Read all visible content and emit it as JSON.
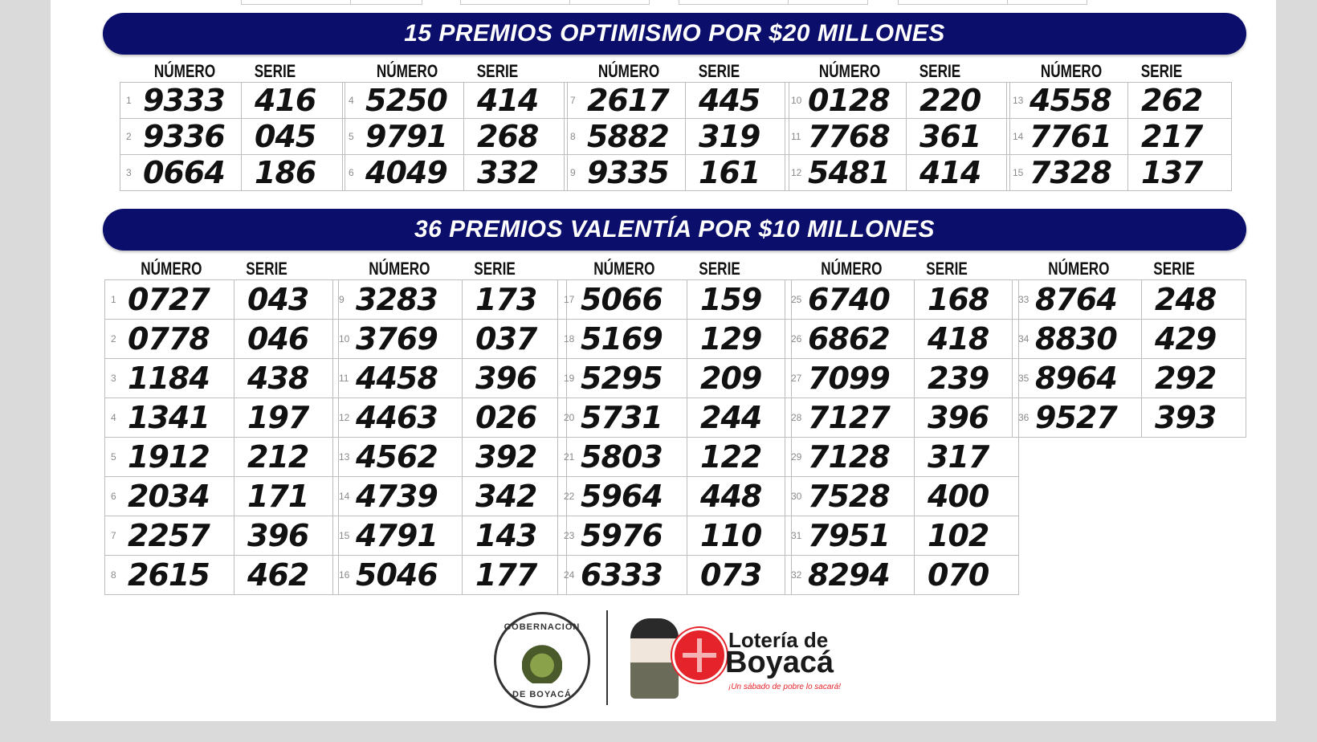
{
  "colors": {
    "banner_bg": "#0b0e6b",
    "banner_text": "#ffffff",
    "page_bg": "#dadada",
    "sheet_bg": "#ffffff",
    "brand_red": "#e5232a"
  },
  "optimismo": {
    "title": "15 PREMIOS OPTIMISMO POR $20 MILLONES",
    "header_numero": "NÚMERO",
    "header_serie": "SERIE",
    "groups": [
      {
        "rows": [
          {
            "idx": "1",
            "numero": "9333",
            "serie": "416"
          },
          {
            "idx": "2",
            "numero": "9336",
            "serie": "045"
          },
          {
            "idx": "3",
            "numero": "0664",
            "serie": "186"
          }
        ]
      },
      {
        "rows": [
          {
            "idx": "4",
            "numero": "5250",
            "serie": "414"
          },
          {
            "idx": "5",
            "numero": "9791",
            "serie": "268"
          },
          {
            "idx": "6",
            "numero": "4049",
            "serie": "332"
          }
        ]
      },
      {
        "rows": [
          {
            "idx": "7",
            "numero": "2617",
            "serie": "445"
          },
          {
            "idx": "8",
            "numero": "5882",
            "serie": "319"
          },
          {
            "idx": "9",
            "numero": "9335",
            "serie": "161"
          }
        ]
      },
      {
        "rows": [
          {
            "idx": "10",
            "numero": "0128",
            "serie": "220"
          },
          {
            "idx": "11",
            "numero": "7768",
            "serie": "361"
          },
          {
            "idx": "12",
            "numero": "5481",
            "serie": "414"
          }
        ]
      },
      {
        "rows": [
          {
            "idx": "13",
            "numero": "4558",
            "serie": "262"
          },
          {
            "idx": "14",
            "numero": "7761",
            "serie": "217"
          },
          {
            "idx": "15",
            "numero": "7328",
            "serie": "137"
          }
        ]
      }
    ]
  },
  "valentia": {
    "title": "36 PREMIOS VALENTÍA POR $10 MILLONES",
    "header_numero": "NÚMERO",
    "header_serie": "SERIE",
    "groups": [
      {
        "rows": [
          {
            "idx": "1",
            "numero": "0727",
            "serie": "043"
          },
          {
            "idx": "2",
            "numero": "0778",
            "serie": "046"
          },
          {
            "idx": "3",
            "numero": "1184",
            "serie": "438"
          },
          {
            "idx": "4",
            "numero": "1341",
            "serie": "197"
          },
          {
            "idx": "5",
            "numero": "1912",
            "serie": "212"
          },
          {
            "idx": "6",
            "numero": "2034",
            "serie": "171"
          },
          {
            "idx": "7",
            "numero": "2257",
            "serie": "396"
          },
          {
            "idx": "8",
            "numero": "2615",
            "serie": "462"
          }
        ]
      },
      {
        "rows": [
          {
            "idx": "9",
            "numero": "3283",
            "serie": "173"
          },
          {
            "idx": "10",
            "numero": "3769",
            "serie": "037"
          },
          {
            "idx": "11",
            "numero": "4458",
            "serie": "396"
          },
          {
            "idx": "12",
            "numero": "4463",
            "serie": "026"
          },
          {
            "idx": "13",
            "numero": "4562",
            "serie": "392"
          },
          {
            "idx": "14",
            "numero": "4739",
            "serie": "342"
          },
          {
            "idx": "15",
            "numero": "4791",
            "serie": "143"
          },
          {
            "idx": "16",
            "numero": "5046",
            "serie": "177"
          }
        ]
      },
      {
        "rows": [
          {
            "idx": "17",
            "numero": "5066",
            "serie": "159"
          },
          {
            "idx": "18",
            "numero": "5169",
            "serie": "129"
          },
          {
            "idx": "19",
            "numero": "5295",
            "serie": "209"
          },
          {
            "idx": "20",
            "numero": "5731",
            "serie": "244"
          },
          {
            "idx": "21",
            "numero": "5803",
            "serie": "122"
          },
          {
            "idx": "22",
            "numero": "5964",
            "serie": "448"
          },
          {
            "idx": "23",
            "numero": "5976",
            "serie": "110"
          },
          {
            "idx": "24",
            "numero": "6333",
            "serie": "073"
          }
        ]
      },
      {
        "rows": [
          {
            "idx": "25",
            "numero": "6740",
            "serie": "168"
          },
          {
            "idx": "26",
            "numero": "6862",
            "serie": "418"
          },
          {
            "idx": "27",
            "numero": "7099",
            "serie": "239"
          },
          {
            "idx": "28",
            "numero": "7127",
            "serie": "396"
          },
          {
            "idx": "29",
            "numero": "7128",
            "serie": "317"
          },
          {
            "idx": "30",
            "numero": "7528",
            "serie": "400"
          },
          {
            "idx": "31",
            "numero": "7951",
            "serie": "102"
          },
          {
            "idx": "32",
            "numero": "8294",
            "serie": "070"
          }
        ]
      },
      {
        "rows": [
          {
            "idx": "33",
            "numero": "8764",
            "serie": "248"
          },
          {
            "idx": "34",
            "numero": "8830",
            "serie": "429"
          },
          {
            "idx": "35",
            "numero": "8964",
            "serie": "292"
          },
          {
            "idx": "36",
            "numero": "9527",
            "serie": "393"
          }
        ]
      }
    ]
  },
  "footer": {
    "seal_top": "GOBERNACIÓN",
    "seal_bottom": "DE BOYACÁ",
    "lottery_line1": "Lotería de",
    "lottery_line2": "Boyacá",
    "lottery_slogan": "¡Un sábado de pobre lo sacará!"
  }
}
